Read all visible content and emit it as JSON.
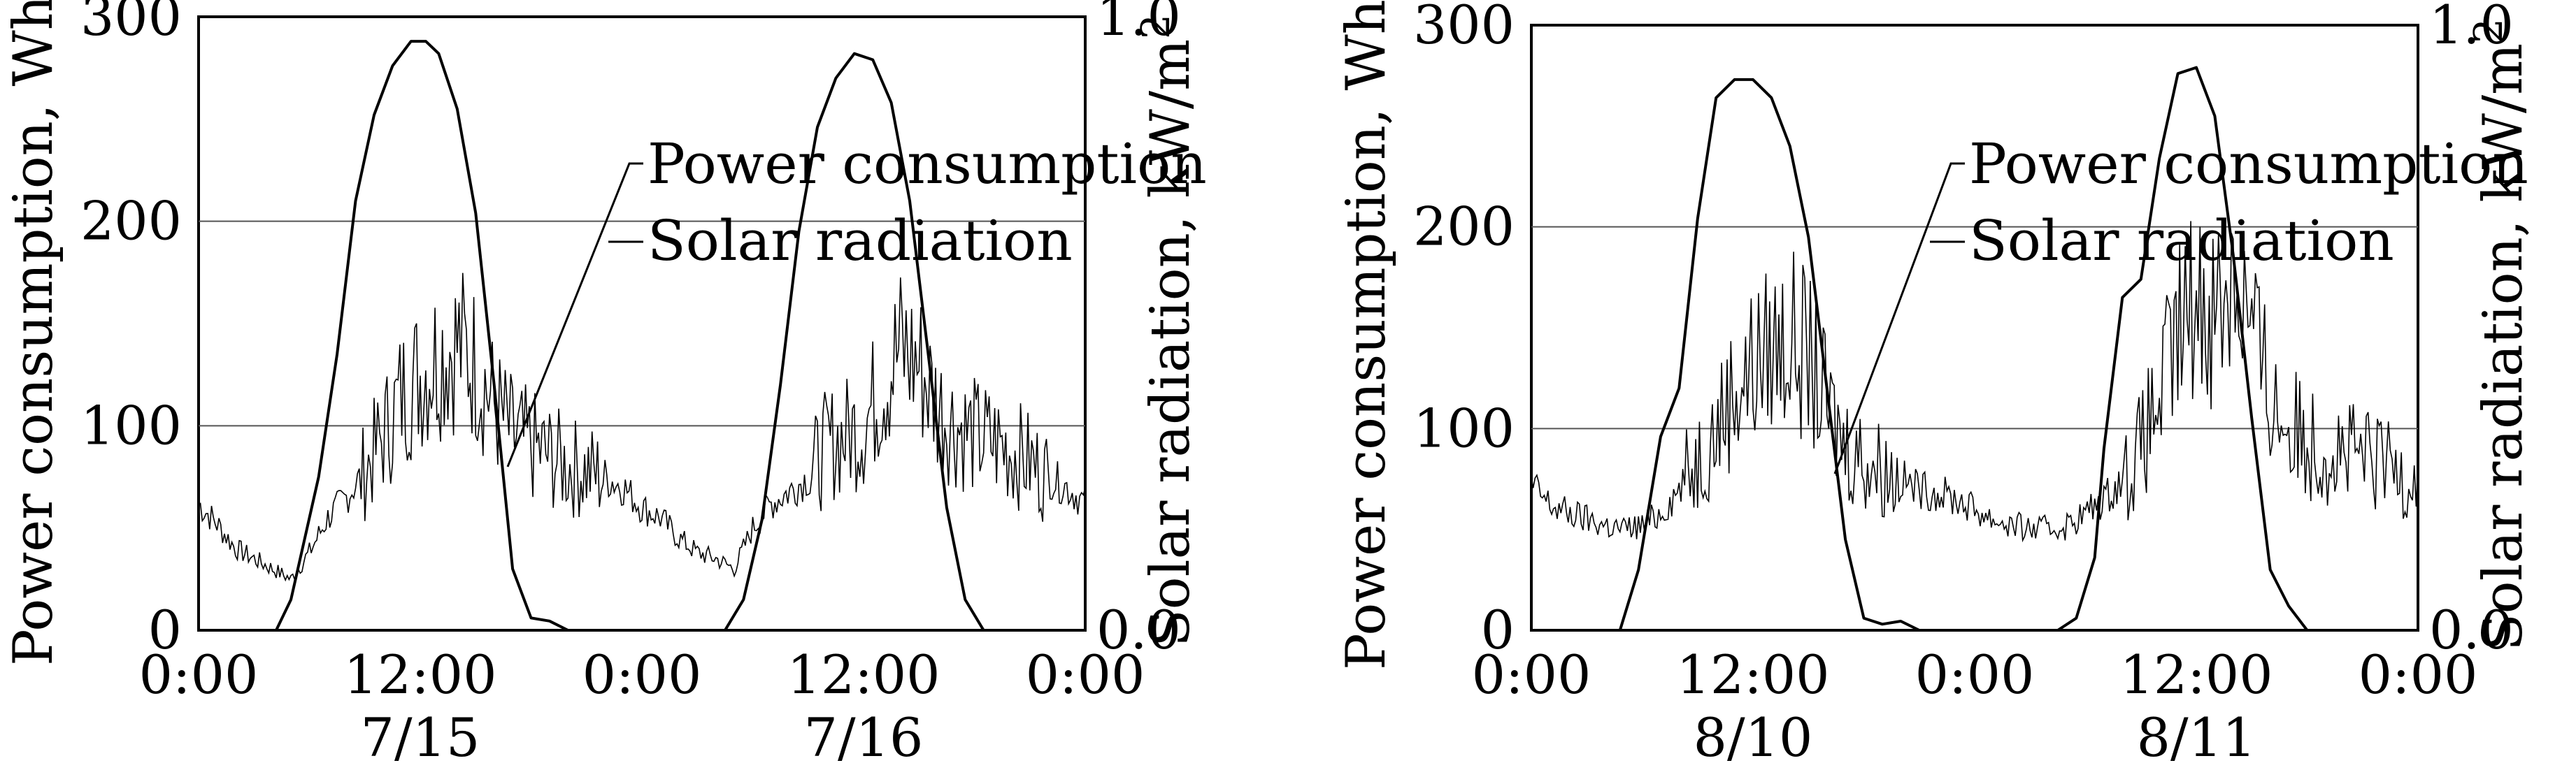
{
  "chart_data": [
    {
      "type": "line",
      "title": "",
      "xlabel": "",
      "ylabel": "Power consumption, Wh",
      "y2label": "Solar radiation, kW/m",
      "y2label_sup": "2",
      "ylim": [
        0,
        300
      ],
      "y2lim": [
        0,
        1.0
      ],
      "xlim": [
        0,
        48
      ],
      "yticks": [
        "0",
        "100",
        "200",
        "300"
      ],
      "y2ticks": [
        "0.0",
        "1.0"
      ],
      "xticks": [
        "0:00",
        "12:00",
        "0:00",
        "12:00",
        "0:00"
      ],
      "date_labels": [
        "7/15",
        "7/16"
      ],
      "gridlines_y": [
        100,
        200
      ],
      "legend": {
        "position": "center",
        "power": "Power consumption",
        "solar": "Solar radiation"
      },
      "series": [
        {
          "name": "Solar radiation",
          "axis": "right",
          "x": [
            0,
            4.2,
            5.0,
            6.5,
            7.5,
            8.5,
            9.5,
            10.5,
            11.5,
            12.3,
            13.0,
            14.0,
            15.0,
            16.0,
            17.0,
            18.0,
            19.0,
            20.0,
            28.5,
            29.5,
            30.5,
            31.5,
            32.5,
            33.5,
            34.5,
            35.5,
            36.5,
            37.5,
            38.5,
            39.5,
            40.5,
            41.5,
            42.5,
            48
          ],
          "y": [
            0,
            0,
            0.05,
            0.25,
            0.45,
            0.7,
            0.84,
            0.92,
            0.96,
            0.96,
            0.94,
            0.85,
            0.68,
            0.4,
            0.1,
            0.02,
            0.015,
            0,
            0,
            0.05,
            0.18,
            0.4,
            0.65,
            0.82,
            0.9,
            0.94,
            0.93,
            0.86,
            0.7,
            0.45,
            0.2,
            0.05,
            0,
            0
          ]
        },
        {
          "name": "Power consumption",
          "axis": "left",
          "x": [
            0,
            1,
            2,
            3,
            4,
            5,
            6,
            7,
            8,
            9,
            10,
            11,
            12,
            13,
            14,
            15,
            16,
            17,
            18,
            19,
            20,
            21,
            22,
            23,
            24,
            25,
            26,
            27,
            28,
            29,
            30,
            31,
            32,
            33,
            34,
            35,
            36,
            37,
            38,
            39,
            40,
            41,
            42,
            43,
            44,
            45,
            46,
            47,
            48
          ],
          "y": [
            62,
            52,
            40,
            35,
            30,
            25,
            38,
            55,
            65,
            78,
            95,
            115,
            125,
            135,
            140,
            130,
            110,
            95,
            90,
            85,
            80,
            78,
            75,
            70,
            60,
            55,
            45,
            38,
            35,
            30,
            50,
            62,
            68,
            75,
            90,
            95,
            100,
            120,
            138,
            130,
            110,
            100,
            95,
            92,
            88,
            82,
            75,
            70,
            62
          ]
        }
      ]
    },
    {
      "type": "line",
      "title": "",
      "xlabel": "",
      "ylabel": "Power consumption, Wh",
      "y2label": "Solar radiation, kW/m",
      "y2label_sup": "2",
      "ylim": [
        0,
        300
      ],
      "y2lim": [
        0,
        1.0
      ],
      "xlim": [
        0,
        48
      ],
      "yticks": [
        "0",
        "100",
        "200",
        "300"
      ],
      "y2ticks": [
        "0.0",
        "1.0"
      ],
      "xticks": [
        "0:00",
        "12:00",
        "0:00",
        "12:00",
        "0:00"
      ],
      "date_labels": [
        "8/10",
        "8/11"
      ],
      "gridlines_y": [
        100,
        200
      ],
      "legend": {
        "position": "center",
        "power": "Power consumption",
        "solar": "Solar radiation"
      },
      "series": [
        {
          "name": "Solar radiation",
          "axis": "right",
          "x": [
            0,
            4.8,
            5.8,
            7.0,
            8.0,
            9.0,
            10.0,
            11.0,
            12.0,
            13.0,
            14.0,
            15.0,
            16.0,
            17.0,
            18.0,
            19.0,
            20.0,
            21.0,
            28.5,
            29.5,
            30.5,
            31.0,
            32.0,
            33.0,
            34.0,
            35.0,
            36.0,
            37.0,
            38.0,
            39.0,
            40.0,
            41.0,
            42.0,
            48
          ],
          "y": [
            0,
            0,
            0.1,
            0.32,
            0.4,
            0.68,
            0.88,
            0.91,
            0.91,
            0.88,
            0.8,
            0.65,
            0.4,
            0.15,
            0.02,
            0.01,
            0.015,
            0,
            0,
            0.02,
            0.12,
            0.3,
            0.55,
            0.58,
            0.78,
            0.92,
            0.93,
            0.85,
            0.62,
            0.35,
            0.1,
            0.04,
            0,
            0
          ]
        },
        {
          "name": "Power consumption",
          "axis": "left",
          "x": [
            0,
            1,
            2,
            3,
            4,
            5,
            6,
            7,
            8,
            9,
            10,
            11,
            12,
            13,
            14,
            15,
            16,
            17,
            18,
            19,
            20,
            21,
            22,
            23,
            24,
            25,
            26,
            27,
            28,
            29,
            30,
            31,
            32,
            33,
            34,
            35,
            36,
            37,
            38,
            39,
            40,
            41,
            42,
            43,
            44,
            45,
            46,
            47,
            48
          ],
          "y": [
            72,
            62,
            58,
            55,
            52,
            50,
            52,
            58,
            70,
            85,
            100,
            120,
            130,
            140,
            145,
            135,
            110,
            92,
            85,
            80,
            75,
            70,
            68,
            65,
            60,
            55,
            52,
            50,
            50,
            52,
            58,
            65,
            75,
            90,
            115,
            145,
            165,
            160,
            180,
            150,
            115,
            100,
            95,
            90,
            88,
            85,
            82,
            80,
            78
          ]
        }
      ]
    }
  ]
}
